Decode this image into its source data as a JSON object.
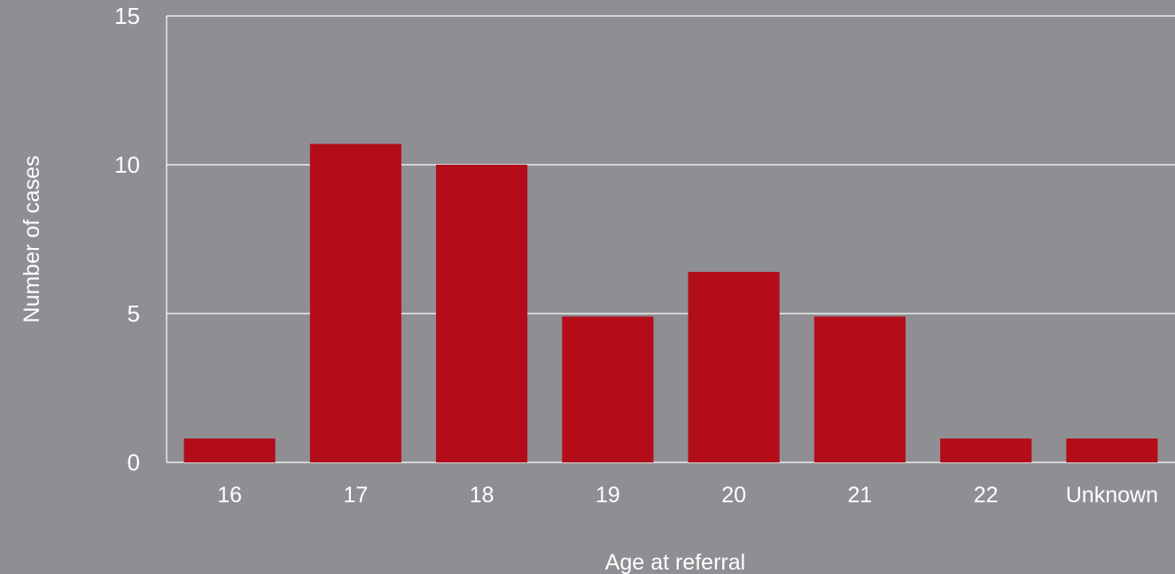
{
  "chart_data": {
    "type": "bar",
    "categories": [
      "16",
      "17",
      "18",
      "19",
      "20",
      "21",
      "22",
      "Unknown"
    ],
    "values": [
      0.8,
      10.7,
      10,
      4.9,
      6.4,
      4.9,
      0.8,
      0.8
    ],
    "title": "",
    "xlabel": "Age at referral",
    "ylabel": "Number of cases",
    "ylim": [
      0,
      15
    ],
    "yticks": [
      0,
      5,
      10,
      15
    ],
    "grid": true,
    "legend": "none",
    "colors": {
      "background": "#8f8e93",
      "bar": "#b30d1a",
      "grid": "#ffffff",
      "text": "#ffffff"
    }
  }
}
